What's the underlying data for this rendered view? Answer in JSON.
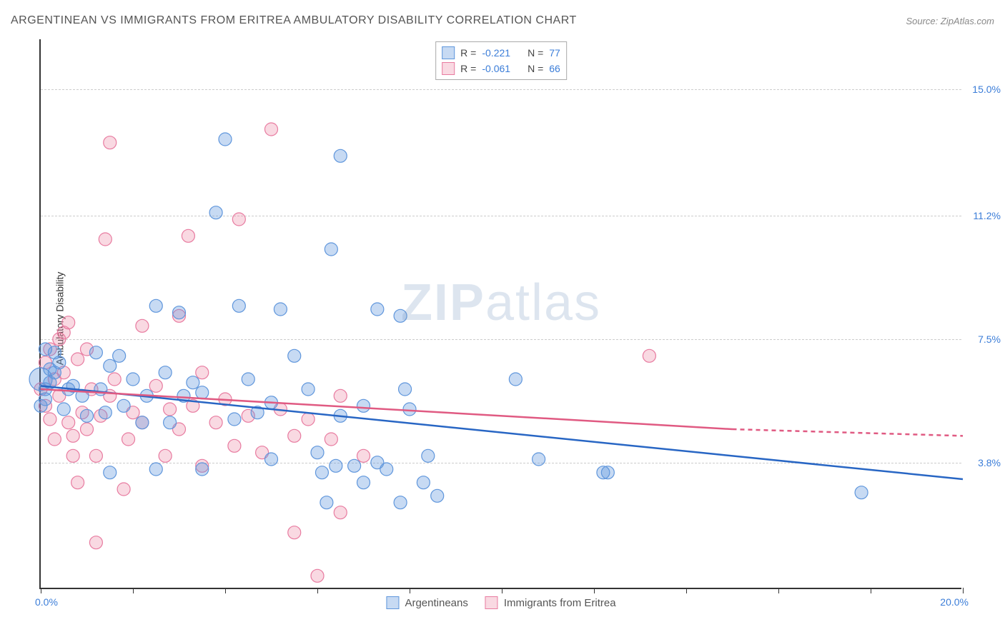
{
  "title": "ARGENTINEAN VS IMMIGRANTS FROM ERITREA AMBULATORY DISABILITY CORRELATION CHART",
  "source_label": "Source: ZipAtlas.com",
  "y_axis_label": "Ambulatory Disability",
  "watermark": {
    "bold": "ZIP",
    "light": "atlas"
  },
  "chart": {
    "type": "scatter",
    "xlim": [
      0,
      20
    ],
    "ylim": [
      0,
      16.5
    ],
    "x_tick_labels": {
      "min": "0.0%",
      "max": "20.0%"
    },
    "x_tick_positions": [
      0,
      2,
      4,
      6,
      8,
      10,
      12,
      14,
      16,
      18,
      20
    ],
    "y_tick_positions": [
      3.8,
      7.5,
      11.2,
      15.0
    ],
    "y_tick_labels": [
      "3.8%",
      "7.5%",
      "11.2%",
      "15.0%"
    ],
    "grid_color": "#cccccc",
    "background_color": "#ffffff",
    "axis_color": "#333333"
  },
  "series": {
    "blue": {
      "label": "Argentineans",
      "color_fill": "rgba(95, 150, 220, 0.35)",
      "color_stroke": "#5f96dc",
      "line_color": "#2866c4",
      "marker_radius": 9,
      "R": "-0.221",
      "N": "77",
      "regression": {
        "x0": 0,
        "y0": 6.1,
        "x1": 20,
        "y1": 3.3
      },
      "points": [
        [
          0.0,
          6.3,
          16
        ],
        [
          0.1,
          6.0
        ],
        [
          0.2,
          6.2
        ],
        [
          0.1,
          5.7
        ],
        [
          0.3,
          6.5
        ],
        [
          0.0,
          5.5
        ],
        [
          0.4,
          6.8
        ],
        [
          0.6,
          6.0
        ],
        [
          0.1,
          7.2
        ],
        [
          0.3,
          7.1
        ],
        [
          0.2,
          6.6
        ],
        [
          0.5,
          5.4
        ],
        [
          0.7,
          6.1
        ],
        [
          0.9,
          5.8
        ],
        [
          1.0,
          5.2
        ],
        [
          1.2,
          7.1
        ],
        [
          1.3,
          6.0
        ],
        [
          1.4,
          5.3
        ],
        [
          1.5,
          6.7
        ],
        [
          1.5,
          3.5
        ],
        [
          1.7,
          7.0
        ],
        [
          1.8,
          5.5
        ],
        [
          2.0,
          6.3
        ],
        [
          2.2,
          5.0
        ],
        [
          2.3,
          5.8
        ],
        [
          2.5,
          8.5
        ],
        [
          2.5,
          3.6
        ],
        [
          2.7,
          6.5
        ],
        [
          2.8,
          5.0
        ],
        [
          3.0,
          8.3
        ],
        [
          3.1,
          5.8
        ],
        [
          3.3,
          6.2
        ],
        [
          3.5,
          5.9
        ],
        [
          3.5,
          3.6
        ],
        [
          3.8,
          11.3
        ],
        [
          4.0,
          13.5
        ],
        [
          4.2,
          5.1
        ],
        [
          4.3,
          8.5
        ],
        [
          4.5,
          6.3
        ],
        [
          4.7,
          5.3
        ],
        [
          5.0,
          3.9
        ],
        [
          5.0,
          5.6
        ],
        [
          5.2,
          8.4
        ],
        [
          5.5,
          7.0
        ],
        [
          5.8,
          6.0
        ],
        [
          6.0,
          4.1
        ],
        [
          6.1,
          3.5
        ],
        [
          6.2,
          2.6
        ],
        [
          6.3,
          10.2
        ],
        [
          6.4,
          3.7
        ],
        [
          6.5,
          5.2
        ],
        [
          6.5,
          13.0
        ],
        [
          6.8,
          3.7
        ],
        [
          7.0,
          3.2
        ],
        [
          7.0,
          5.5
        ],
        [
          7.3,
          8.4
        ],
        [
          7.3,
          3.8
        ],
        [
          7.5,
          3.6
        ],
        [
          7.8,
          8.2
        ],
        [
          7.8,
          2.6
        ],
        [
          7.9,
          6.0
        ],
        [
          8.0,
          5.4
        ],
        [
          8.3,
          3.2
        ],
        [
          8.4,
          4.0
        ],
        [
          8.6,
          2.8
        ],
        [
          10.3,
          6.3
        ],
        [
          10.8,
          3.9
        ],
        [
          12.2,
          3.5
        ],
        [
          12.3,
          3.5
        ],
        [
          17.8,
          2.9
        ]
      ]
    },
    "pink": {
      "label": "Immigrants from Eritrea",
      "color_fill": "rgba(235, 130, 160, 0.30)",
      "color_stroke": "#e87ba0",
      "line_color": "#e05a82",
      "marker_radius": 9,
      "R": "-0.061",
      "N": "66",
      "regression": {
        "x0": 0,
        "y0": 6.0,
        "x1": 15,
        "y1": 4.8,
        "x_dash_end": 20,
        "y_dash_end": 4.6
      },
      "points": [
        [
          0.0,
          6.0
        ],
        [
          0.1,
          5.5
        ],
        [
          0.1,
          6.8
        ],
        [
          0.2,
          7.2
        ],
        [
          0.2,
          5.1
        ],
        [
          0.3,
          4.5
        ],
        [
          0.3,
          6.3
        ],
        [
          0.4,
          7.5
        ],
        [
          0.4,
          5.8
        ],
        [
          0.5,
          6.5
        ],
        [
          0.5,
          7.7
        ],
        [
          0.6,
          5.0
        ],
        [
          0.6,
          8.0
        ],
        [
          0.7,
          4.6
        ],
        [
          0.7,
          4.0
        ],
        [
          0.8,
          6.9
        ],
        [
          0.8,
          3.2
        ],
        [
          0.9,
          5.3
        ],
        [
          1.0,
          7.2
        ],
        [
          1.0,
          4.8
        ],
        [
          1.1,
          6.0
        ],
        [
          1.2,
          4.0
        ],
        [
          1.2,
          1.4
        ],
        [
          1.3,
          5.2
        ],
        [
          1.4,
          10.5
        ],
        [
          1.5,
          13.4
        ],
        [
          1.5,
          5.8
        ],
        [
          1.6,
          6.3
        ],
        [
          1.8,
          3.0
        ],
        [
          1.9,
          4.5
        ],
        [
          2.0,
          5.3
        ],
        [
          2.2,
          7.9
        ],
        [
          2.2,
          5.0
        ],
        [
          2.5,
          6.1
        ],
        [
          2.7,
          4.0
        ],
        [
          2.8,
          5.4
        ],
        [
          3.0,
          8.2
        ],
        [
          3.0,
          4.8
        ],
        [
          3.2,
          10.6
        ],
        [
          3.3,
          5.5
        ],
        [
          3.5,
          3.7
        ],
        [
          3.5,
          6.5
        ],
        [
          3.8,
          5.0
        ],
        [
          4.0,
          5.7
        ],
        [
          4.2,
          4.3
        ],
        [
          4.3,
          11.1
        ],
        [
          4.5,
          5.2
        ],
        [
          4.8,
          4.1
        ],
        [
          5.0,
          13.8
        ],
        [
          5.2,
          5.4
        ],
        [
          5.5,
          4.6
        ],
        [
          5.5,
          1.7
        ],
        [
          5.8,
          5.1
        ],
        [
          6.0,
          0.4
        ],
        [
          6.3,
          4.5
        ],
        [
          6.5,
          2.3
        ],
        [
          6.5,
          5.8
        ],
        [
          7.0,
          4.0
        ],
        [
          13.2,
          7.0
        ]
      ]
    }
  },
  "legend_r_label": "R =",
  "legend_n_label": "N ="
}
